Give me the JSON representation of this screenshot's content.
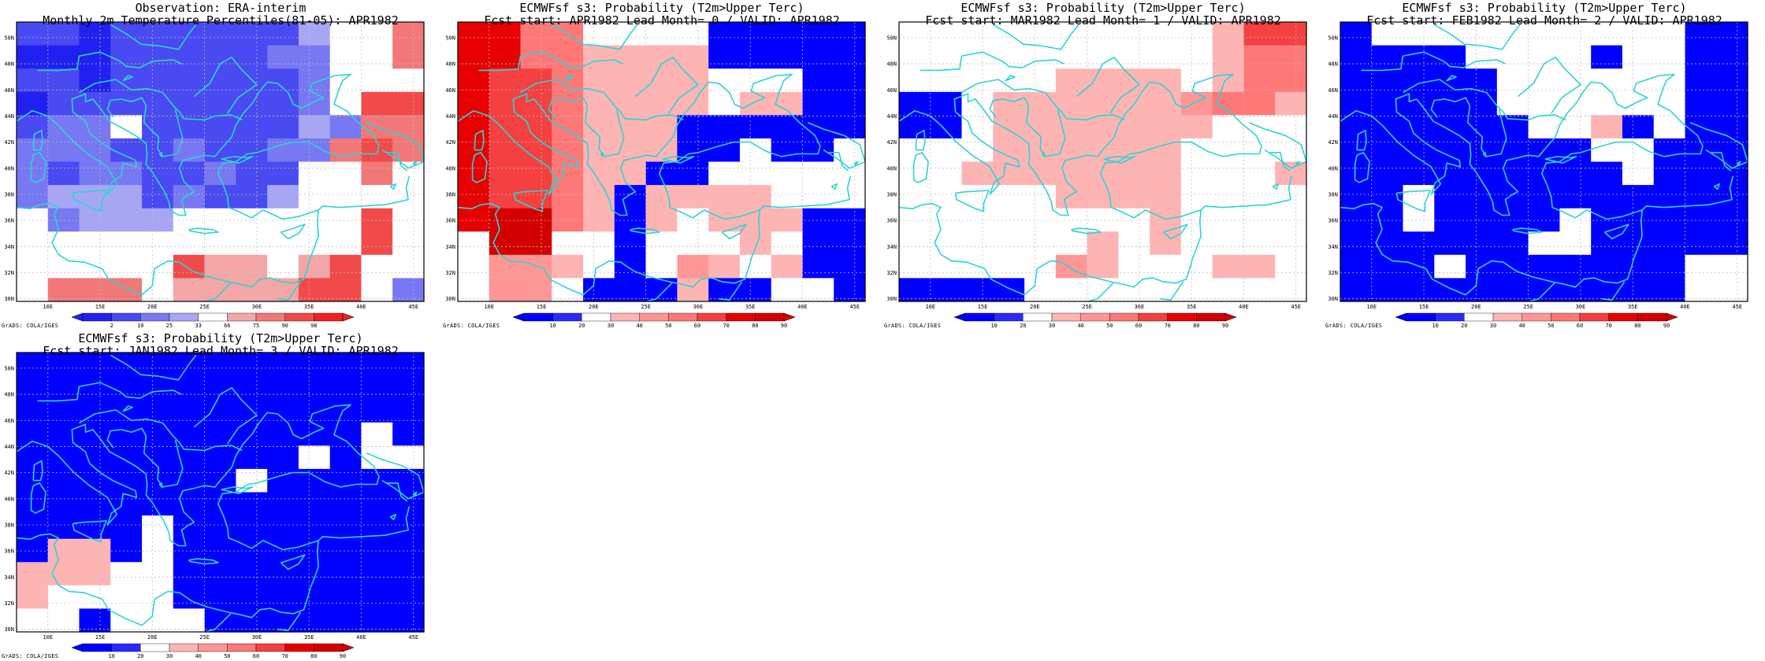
{
  "colors": {
    "coast": "#2fd3d3",
    "grid": "#bfbfbf",
    "frame": "#000000",
    "obs_scale": [
      "#2020f0",
      "#4a4af2",
      "#7878f2",
      "#a6a6f4",
      "#ffffff",
      "#f4a6a6",
      "#f27878",
      "#f24a4a",
      "#f02020"
    ],
    "prob_scale": [
      "#0000ff",
      "#2a2aff",
      "#ffffff",
      "#ffb4b4",
      "#ff9696",
      "#ff7878",
      "#f44040",
      "#e80000",
      "#d40000"
    ]
  },
  "map_axes": {
    "lon_labels": [
      "10E",
      "15E",
      "20E",
      "25E",
      "30E",
      "35E",
      "40E",
      "45E"
    ],
    "lat_labels": [
      "50N",
      "48N",
      "46N",
      "44N",
      "42N",
      "40N",
      "38N",
      "36N",
      "34N",
      "32N",
      "30N"
    ],
    "lon_range": [
      7,
      46
    ],
    "lat_range": [
      29.8,
      51.2
    ]
  },
  "panels": [
    {
      "title1": "Observation: ERA-interim",
      "title2": "Monthly 2m Temperature Percentiles(81-05): APR1982",
      "credit": "GrADS: COLA/IGES",
      "scale": "obs",
      "colorbar_labels": [
        "2",
        "10",
        "25",
        "33",
        "66",
        "75",
        "90",
        "98"
      ],
      "cells": [
        [
          1,
          1,
          0,
          1,
          1,
          1,
          1,
          1,
          1,
          3,
          4,
          4,
          6
        ],
        [
          0,
          0,
          0,
          1,
          1,
          1,
          1,
          1,
          2,
          2,
          4,
          4,
          6
        ],
        [
          1,
          1,
          0,
          1,
          1,
          1,
          1,
          1,
          1,
          2,
          4,
          4,
          4
        ],
        [
          0,
          1,
          1,
          1,
          1,
          1,
          1,
          1,
          1,
          2,
          4,
          7,
          7
        ],
        [
          1,
          2,
          2,
          4,
          1,
          1,
          1,
          1,
          1,
          3,
          2,
          6,
          6
        ],
        [
          2,
          2,
          2,
          1,
          1,
          2,
          1,
          1,
          2,
          2,
          6,
          7,
          6
        ],
        [
          2,
          1,
          2,
          2,
          1,
          1,
          2,
          1,
          1,
          4,
          4,
          6,
          4
        ],
        [
          2,
          3,
          3,
          3,
          1,
          2,
          1,
          1,
          3,
          4,
          4,
          4,
          4
        ],
        [
          4,
          2,
          3,
          3,
          3,
          4,
          4,
          4,
          4,
          4,
          4,
          7,
          4
        ],
        [
          4,
          4,
          4,
          4,
          4,
          4,
          4,
          4,
          4,
          4,
          4,
          7,
          4
        ],
        [
          4,
          4,
          4,
          4,
          4,
          7,
          5,
          5,
          4,
          5,
          7,
          4,
          4
        ],
        [
          4,
          6,
          6,
          6,
          4,
          5,
          5,
          5,
          5,
          7,
          7,
          4,
          2
        ]
      ]
    },
    {
      "title1": "ECMWFsf s3: Probability (T2m>Upper Terc)",
      "title2": "Fcst start: APR1982  Lead Month= 0 / VALID: APR1982",
      "credit": "GrADS: COLA/IGES",
      "scale": "prob",
      "colorbar_labels": [
        "10",
        "20",
        "30",
        "40",
        "50",
        "60",
        "70",
        "80",
        "90"
      ],
      "cells": [
        [
          7,
          7,
          5,
          5,
          2,
          2,
          2,
          2,
          0,
          0,
          0,
          0,
          0
        ],
        [
          7,
          7,
          5,
          5,
          3,
          3,
          3,
          3,
          0,
          0,
          0,
          0,
          0
        ],
        [
          7,
          6,
          6,
          5,
          3,
          3,
          3,
          3,
          2,
          2,
          2,
          0,
          0
        ],
        [
          7,
          6,
          6,
          5,
          3,
          3,
          3,
          3,
          2,
          3,
          3,
          0,
          0
        ],
        [
          7,
          6,
          6,
          5,
          3,
          3,
          3,
          0,
          0,
          0,
          0,
          0,
          0
        ],
        [
          7,
          6,
          6,
          5,
          3,
          3,
          3,
          0,
          0,
          2,
          0,
          0,
          2
        ],
        [
          7,
          6,
          6,
          5,
          3,
          3,
          0,
          0,
          2,
          2,
          2,
          2,
          2
        ],
        [
          7,
          6,
          6,
          5,
          3,
          0,
          3,
          3,
          3,
          3,
          2,
          2,
          2
        ],
        [
          7,
          8,
          8,
          5,
          3,
          0,
          3,
          2,
          3,
          3,
          3,
          0,
          0
        ],
        [
          2,
          8,
          8,
          2,
          2,
          0,
          2,
          2,
          2,
          3,
          2,
          0,
          0
        ],
        [
          2,
          4,
          4,
          3,
          2,
          0,
          2,
          4,
          3,
          2,
          3,
          0,
          0
        ],
        [
          2,
          4,
          4,
          2,
          0,
          0,
          0,
          3,
          0,
          0,
          2,
          2,
          0
        ]
      ]
    },
    {
      "title1": "ECMWFsf s3: Probability (T2m>Upper Terc)",
      "title2": "Fcst start: MAR1982  Lead Month= 1 / VALID: APR1982",
      "credit": "GrADS: COLA/IGES",
      "scale": "prob",
      "colorbar_labels": [
        "10",
        "20",
        "30",
        "40",
        "50",
        "60",
        "70",
        "80",
        "90"
      ],
      "cells": [
        [
          2,
          2,
          2,
          2,
          2,
          2,
          2,
          2,
          2,
          2,
          3,
          6,
          6
        ],
        [
          2,
          2,
          2,
          2,
          2,
          2,
          2,
          2,
          2,
          2,
          3,
          5,
          5
        ],
        [
          2,
          2,
          2,
          2,
          2,
          3,
          3,
          3,
          3,
          2,
          3,
          5,
          5
        ],
        [
          0,
          0,
          2,
          3,
          3,
          3,
          3,
          3,
          3,
          4,
          5,
          5,
          3
        ],
        [
          0,
          0,
          2,
          3,
          3,
          3,
          3,
          3,
          3,
          3,
          2,
          2,
          2
        ],
        [
          2,
          2,
          2,
          3,
          3,
          3,
          3,
          3,
          3,
          2,
          2,
          2,
          2
        ],
        [
          2,
          2,
          3,
          3,
          3,
          3,
          3,
          3,
          3,
          2,
          2,
          2,
          3
        ],
        [
          2,
          2,
          2,
          2,
          2,
          3,
          3,
          3,
          3,
          2,
          2,
          2,
          2
        ],
        [
          2,
          2,
          2,
          2,
          2,
          2,
          2,
          2,
          3,
          2,
          2,
          2,
          2
        ],
        [
          2,
          2,
          2,
          2,
          2,
          2,
          3,
          2,
          3,
          2,
          2,
          2,
          2
        ],
        [
          2,
          2,
          2,
          2,
          2,
          4,
          3,
          2,
          2,
          2,
          3,
          3,
          2
        ],
        [
          0,
          0,
          0,
          0,
          2,
          2,
          2,
          2,
          2,
          2,
          2,
          2,
          2
        ]
      ]
    },
    {
      "title1": "ECMWFsf s3: Probability (T2m>Upper Terc)",
      "title2": "Fcst start: FEB1982  Lead Month= 2 / VALID: APR1982",
      "credit": "GrADS: COLA/IGES",
      "scale": "prob",
      "colorbar_labels": [
        "10",
        "20",
        "30",
        "40",
        "50",
        "60",
        "70",
        "80",
        "90"
      ],
      "cells": [
        [
          0,
          2,
          2,
          2,
          2,
          2,
          2,
          2,
          2,
          2,
          2,
          0,
          0
        ],
        [
          0,
          0,
          0,
          0,
          2,
          2,
          2,
          2,
          0,
          2,
          2,
          0,
          0
        ],
        [
          0,
          0,
          0,
          0,
          0,
          2,
          2,
          2,
          2,
          2,
          2,
          0,
          0
        ],
        [
          0,
          0,
          0,
          0,
          0,
          2,
          2,
          2,
          2,
          2,
          2,
          0,
          0
        ],
        [
          0,
          0,
          0,
          0,
          0,
          0,
          2,
          2,
          3,
          0,
          2,
          0,
          0
        ],
        [
          0,
          0,
          0,
          0,
          0,
          0,
          0,
          0,
          2,
          2,
          0,
          0,
          0
        ],
        [
          0,
          0,
          0,
          0,
          0,
          0,
          0,
          0,
          0,
          2,
          0,
          0,
          0
        ],
        [
          0,
          0,
          2,
          0,
          0,
          0,
          0,
          0,
          0,
          0,
          0,
          0,
          0
        ],
        [
          0,
          0,
          2,
          0,
          0,
          0,
          0,
          2,
          0,
          0,
          0,
          0,
          0
        ],
        [
          0,
          0,
          0,
          0,
          0,
          0,
          2,
          2,
          0,
          0,
          0,
          0,
          0
        ],
        [
          0,
          0,
          0,
          2,
          0,
          0,
          0,
          0,
          0,
          0,
          0,
          2,
          2
        ],
        [
          0,
          0,
          0,
          0,
          0,
          0,
          0,
          0,
          0,
          0,
          0,
          2,
          2
        ]
      ]
    },
    {
      "title1": "ECMWFsf s3: Probability (T2m>Upper Terc)",
      "title2": "Fcst start: JAN1982  Lead Month= 3 / VALID: APR1982",
      "credit": "GrADS: COLA/IGES",
      "scale": "prob",
      "colorbar_labels": [
        "10",
        "20",
        "30",
        "40",
        "50",
        "60",
        "70",
        "80",
        "90"
      ],
      "cells": [
        [
          0,
          0,
          0,
          0,
          0,
          0,
          0,
          0,
          0,
          0,
          0,
          0,
          0
        ],
        [
          0,
          0,
          0,
          0,
          0,
          0,
          0,
          0,
          0,
          0,
          0,
          0,
          0
        ],
        [
          0,
          0,
          0,
          0,
          0,
          0,
          0,
          0,
          0,
          0,
          0,
          0,
          0
        ],
        [
          0,
          0,
          0,
          0,
          0,
          0,
          0,
          0,
          0,
          0,
          0,
          2,
          0
        ],
        [
          0,
          0,
          0,
          0,
          0,
          0,
          0,
          0,
          0,
          2,
          0,
          2,
          2
        ],
        [
          0,
          0,
          0,
          0,
          0,
          0,
          0,
          2,
          0,
          0,
          0,
          0,
          0
        ],
        [
          0,
          0,
          0,
          0,
          0,
          0,
          0,
          0,
          0,
          0,
          0,
          0,
          0
        ],
        [
          0,
          0,
          0,
          0,
          2,
          0,
          0,
          0,
          0,
          0,
          0,
          0,
          0
        ],
        [
          0,
          3,
          3,
          0,
          2,
          0,
          0,
          0,
          0,
          0,
          0,
          0,
          0
        ],
        [
          3,
          3,
          3,
          2,
          2,
          0,
          0,
          0,
          0,
          0,
          0,
          0,
          0
        ],
        [
          3,
          2,
          2,
          2,
          2,
          0,
          0,
          0,
          0,
          0,
          0,
          0,
          0
        ],
        [
          2,
          2,
          0,
          2,
          2,
          2,
          0,
          0,
          0,
          0,
          0,
          0,
          0
        ]
      ]
    }
  ]
}
